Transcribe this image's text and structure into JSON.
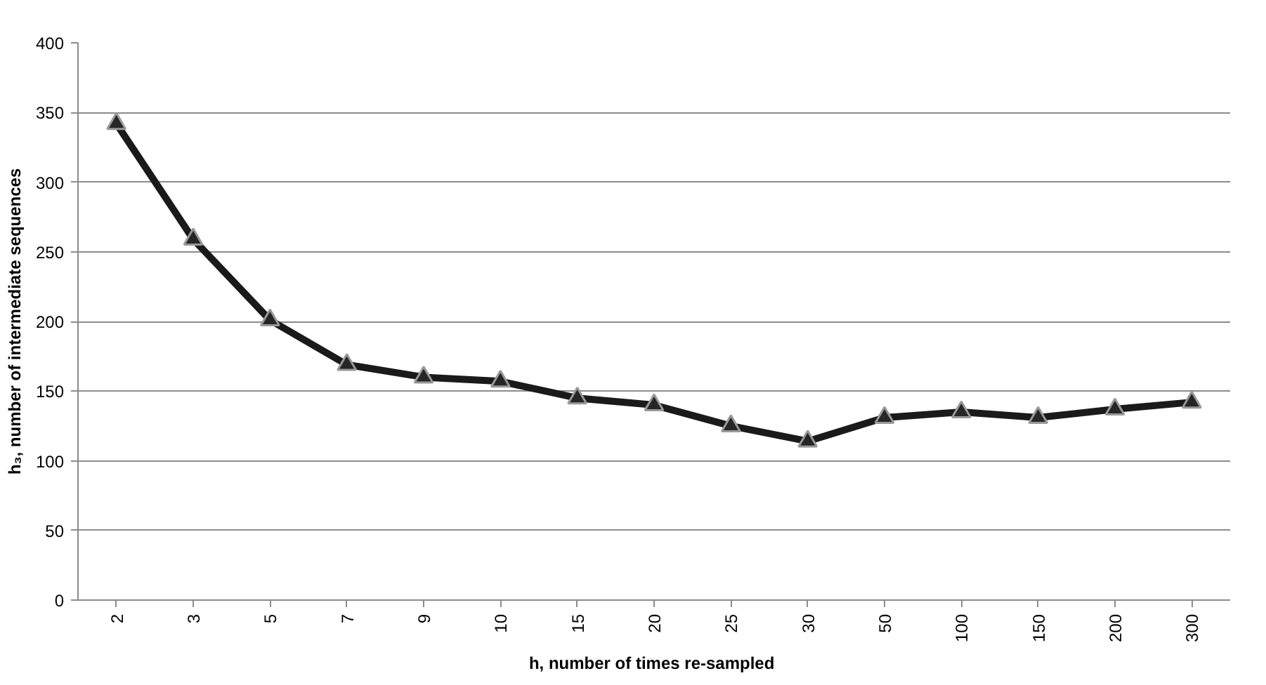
{
  "chart_data": {
    "type": "line",
    "xlabel": "h, number of times  re-sampled",
    "ylabel": "h₃, number of intermediate sequences",
    "categories": [
      "2",
      "3",
      "5",
      "7",
      "9",
      "10",
      "15",
      "20",
      "25",
      "30",
      "50",
      "100",
      "150",
      "200",
      "300"
    ],
    "series": [
      {
        "color": "#1a1a1a",
        "values": [
          342,
          259,
          201,
          169,
          160,
          157,
          145,
          140,
          125,
          114,
          131,
          135,
          131,
          137,
          142
        ]
      }
    ],
    "ylim": [
      0,
      400
    ],
    "yticks": [
      0,
      50,
      100,
      150,
      200,
      250,
      300,
      350,
      400
    ],
    "grid": "y",
    "marker": "triangle",
    "line_style": "solid"
  }
}
